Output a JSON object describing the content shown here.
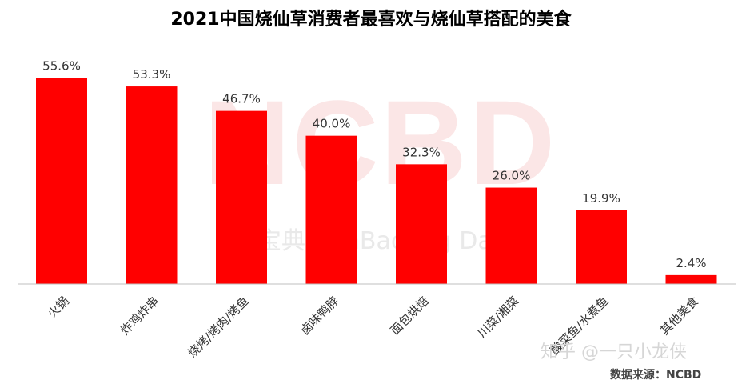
{
  "chart_data": {
    "type": "bar",
    "title": "2021中国烧仙草消费者最喜欢与烧仙草搭配的美食",
    "categories": [
      "火锅",
      "炸鸡炸串",
      "烧烤/烤肉/烤鱼",
      "卤味鸭脖",
      "面包烘焙",
      "川菜/湘菜",
      "酸菜鱼/水煮鱼",
      "其他美食"
    ],
    "values": [
      55.6,
      53.3,
      46.7,
      40.0,
      32.3,
      26.0,
      19.9,
      2.4
    ],
    "value_labels": [
      "55.6%",
      "53.3%",
      "46.7%",
      "40.0%",
      "32.3%",
      "26.0%",
      "19.9%",
      "2.4%"
    ],
    "ylim": [
      0,
      60
    ],
    "grid": false,
    "bar_color": "#ff0000",
    "axis_color": "#bfbfbf"
  },
  "watermark": {
    "brand": "NCBD",
    "sub": "餐宝典 CanBao Big Data"
  },
  "zhihu_watermark": "知乎 @一只小龙侠",
  "source_note": "数据来源：NCBD"
}
